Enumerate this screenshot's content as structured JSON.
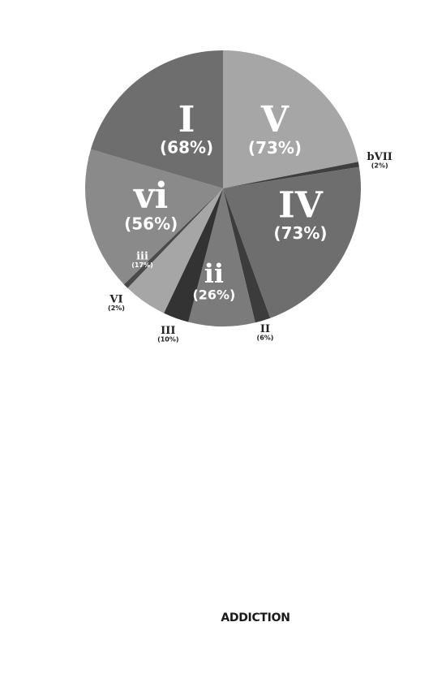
{
  "chart_data": {
    "type": "pie",
    "title": "",
    "slices": [
      {
        "label": "V",
        "percent_text": "(73%)",
        "share": 20.16,
        "color": "#a6a6a6",
        "label_color": "#ffffff",
        "label_size": "large"
      },
      {
        "label": "bVII",
        "percent_text": "(2%)",
        "share": 0.55,
        "color": "#3f3f3f",
        "label_color": "#222222",
        "label_size": "small",
        "outside": true
      },
      {
        "label": "IV",
        "percent_text": "(73%)",
        "share": 20.16,
        "color": "#6e6e6e",
        "label_color": "#ffffff",
        "label_size": "large"
      },
      {
        "label": "II",
        "percent_text": "(6%)",
        "share": 1.66,
        "color": "#3c3c3c",
        "label_color": "#222222",
        "label_size": "small",
        "outside": true
      },
      {
        "label": "ii",
        "percent_text": "(26%)",
        "share": 7.18,
        "color": "#7b7b7b",
        "label_color": "#ffffff",
        "label_size": "medium"
      },
      {
        "label": "III",
        "percent_text": "(10%)",
        "share": 2.76,
        "color": "#333333",
        "label_color": "#222222",
        "label_size": "small",
        "outside": true
      },
      {
        "label": "iii",
        "percent_text": "(17%)",
        "share": 4.7,
        "color": "#a6a6a6",
        "label_color": "#ffffff",
        "label_size": "small"
      },
      {
        "label": "VI",
        "percent_text": "(2%)",
        "share": 0.55,
        "color": "#4a4a4a",
        "label_color": "#222222",
        "label_size": "small",
        "outside": true
      },
      {
        "label": "vi",
        "percent_text": "(56%)",
        "share": 15.47,
        "color": "#8a8a8a",
        "label_color": "#ffffff",
        "label_size": "large"
      },
      {
        "label": "I",
        "percent_text": "(68%)",
        "share": 18.78,
        "color": "#6e6e6e",
        "label_color": "#ffffff",
        "label_size": "large"
      }
    ]
  },
  "footer": {
    "text": "ADDICTION"
  }
}
